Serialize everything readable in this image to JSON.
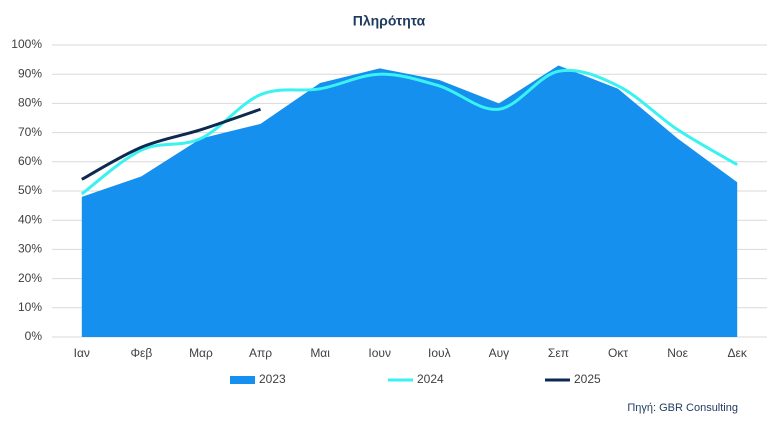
{
  "chart_data": {
    "type": "area_line",
    "title": "Πληρότητα",
    "categories": [
      "Ιαν",
      "Φεβ",
      "Μαρ",
      "Απρ",
      "Μαι",
      "Ιουν",
      "Ιουλ",
      "Αυγ",
      "Σεπ",
      "Οκτ",
      "Νοε",
      "Δεκ"
    ],
    "series": [
      {
        "name": "2023",
        "color": "#1590ee",
        "kind": "area",
        "values": [
          48,
          55,
          68,
          73,
          87,
          92,
          88,
          80,
          93,
          85,
          68,
          53
        ]
      },
      {
        "name": "2024",
        "color": "#3af2f0",
        "kind": "line",
        "values": [
          49,
          64,
          68,
          83,
          85,
          90,
          86,
          78,
          91,
          86,
          71,
          59
        ]
      },
      {
        "name": "2025",
        "color": "#0c2a50",
        "kind": "line",
        "values": [
          54,
          65,
          71,
          78,
          null,
          null,
          null,
          null,
          null,
          null,
          null,
          null
        ]
      }
    ],
    "ylim": [
      0,
      100
    ],
    "yticks": [
      {
        "value": 0,
        "label": "0%"
      },
      {
        "value": 10,
        "label": "10%"
      },
      {
        "value": 20,
        "label": "20%"
      },
      {
        "value": 30,
        "label": "30%"
      },
      {
        "value": 40,
        "label": "40%"
      },
      {
        "value": 50,
        "label": "50%"
      },
      {
        "value": 60,
        "label": "60%"
      },
      {
        "value": 70,
        "label": "70%"
      },
      {
        "value": 80,
        "label": "80%"
      },
      {
        "value": 90,
        "label": "90%"
      },
      {
        "value": 100,
        "label": "100%"
      }
    ],
    "grid": true,
    "legend": "bottom",
    "source": "Πηγή: GBR Consulting"
  }
}
